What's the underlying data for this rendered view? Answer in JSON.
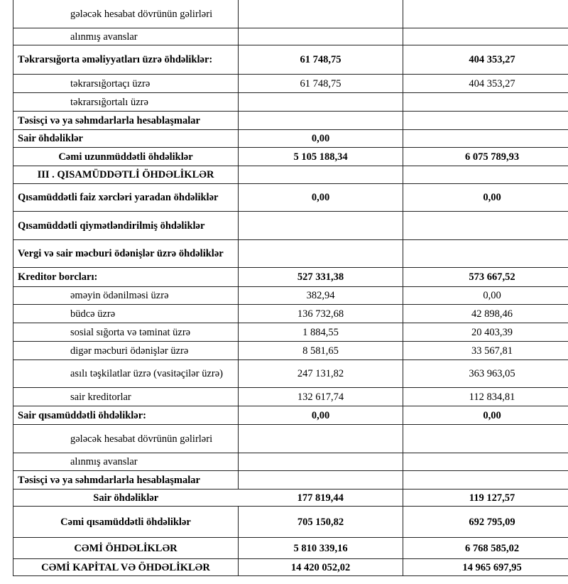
{
  "rows": [
    {
      "label": "gələcək hesabat dövrünün gəlirləri",
      "v1": "",
      "v2": ""
    },
    {
      "label": "alınmış avanslar",
      "v1": "",
      "v2": ""
    },
    {
      "label": "Təkrarsığorta əməliyyatları üzrə öhdəliklər:",
      "v1": "61 748,75",
      "v2": "404 353,27"
    },
    {
      "label": "təkrarsığortaçı üzrə",
      "v1": "61 748,75",
      "v2": "404 353,27"
    },
    {
      "label": "təkrarsığortalı üzrə",
      "v1": "",
      "v2": ""
    },
    {
      "label": "Təsisçi və ya səhmdarlarla hesablaşmalar",
      "v1": "",
      "v2": ""
    },
    {
      "label": "Sair öhdəliklər",
      "v1": "0,00",
      "v2": ""
    },
    {
      "label": "Cəmi uzunmüddətli öhdəliklər",
      "v1": "5 105 188,34",
      "v2": "6 075 789,93"
    },
    {
      "label": "III . QISAMÜDDƏTLİ ÖHDƏLİKLƏR",
      "v1": "",
      "v2": ""
    },
    {
      "label": "Qısamüddətli faiz xərcləri yaradan öhdəliklər",
      "v1": "0,00",
      "v2": "0,00"
    },
    {
      "label": "Qısamüddətli qiymətləndirilmiş öhdəliklər",
      "v1": "",
      "v2": ""
    },
    {
      "label": "Vergi və sair məcburi ödənişlər üzrə öhdəliklər",
      "v1": "",
      "v2": ""
    },
    {
      "label": "Kreditor borcları:",
      "v1": "527 331,38",
      "v2": "573 667,52"
    },
    {
      "label": "əməyin ödənilməsi üzrə",
      "v1": "382,94",
      "v2": "0,00"
    },
    {
      "label": "büdcə üzrə",
      "v1": "136 732,68",
      "v2": "42 898,46"
    },
    {
      "label": "sosial sığorta və təminat üzrə",
      "v1": "1 884,55",
      "v2": "20 403,39"
    },
    {
      "label": "digər məcburi ödənişlər üzrə",
      "v1": "8 581,65",
      "v2": "33 567,81"
    },
    {
      "label": "asılı təşkilatlar üzrə (vasitəçilər üzrə)",
      "v1": "247 131,82",
      "v2": "363 963,05"
    },
    {
      "label": "sair kreditorlar",
      "v1": "132 617,74",
      "v2": "112 834,81"
    },
    {
      "label": "Sair qısamüddətli öhdəliklər:",
      "v1": "0,00",
      "v2": "0,00"
    },
    {
      "label": "gələcək hesabat dövrünün gəlirləri",
      "v1": "",
      "v2": ""
    },
    {
      "label": "alınmış avanslar",
      "v1": "",
      "v2": ""
    },
    {
      "label": "Təsisçi və ya səhmdarlarla hesablaşmalar",
      "v1": "",
      "v2": ""
    },
    {
      "label": "Sair öhdəliklər",
      "v1": "177 819,44",
      "v2": "119 127,57"
    },
    {
      "label": "Cəmi qısamüddətli öhdəliklər",
      "v1": "705 150,82",
      "v2": "692 795,09"
    },
    {
      "label": "CƏMİ ÖHDƏLİKLƏR",
      "v1": "5 810 339,16",
      "v2": "6 768 585,02"
    },
    {
      "label": "CƏMİ KAPİTAL VƏ ÖHDƏLİKLƏR",
      "v1": "14 420 052,02",
      "v2": "14 965 697,95"
    }
  ]
}
